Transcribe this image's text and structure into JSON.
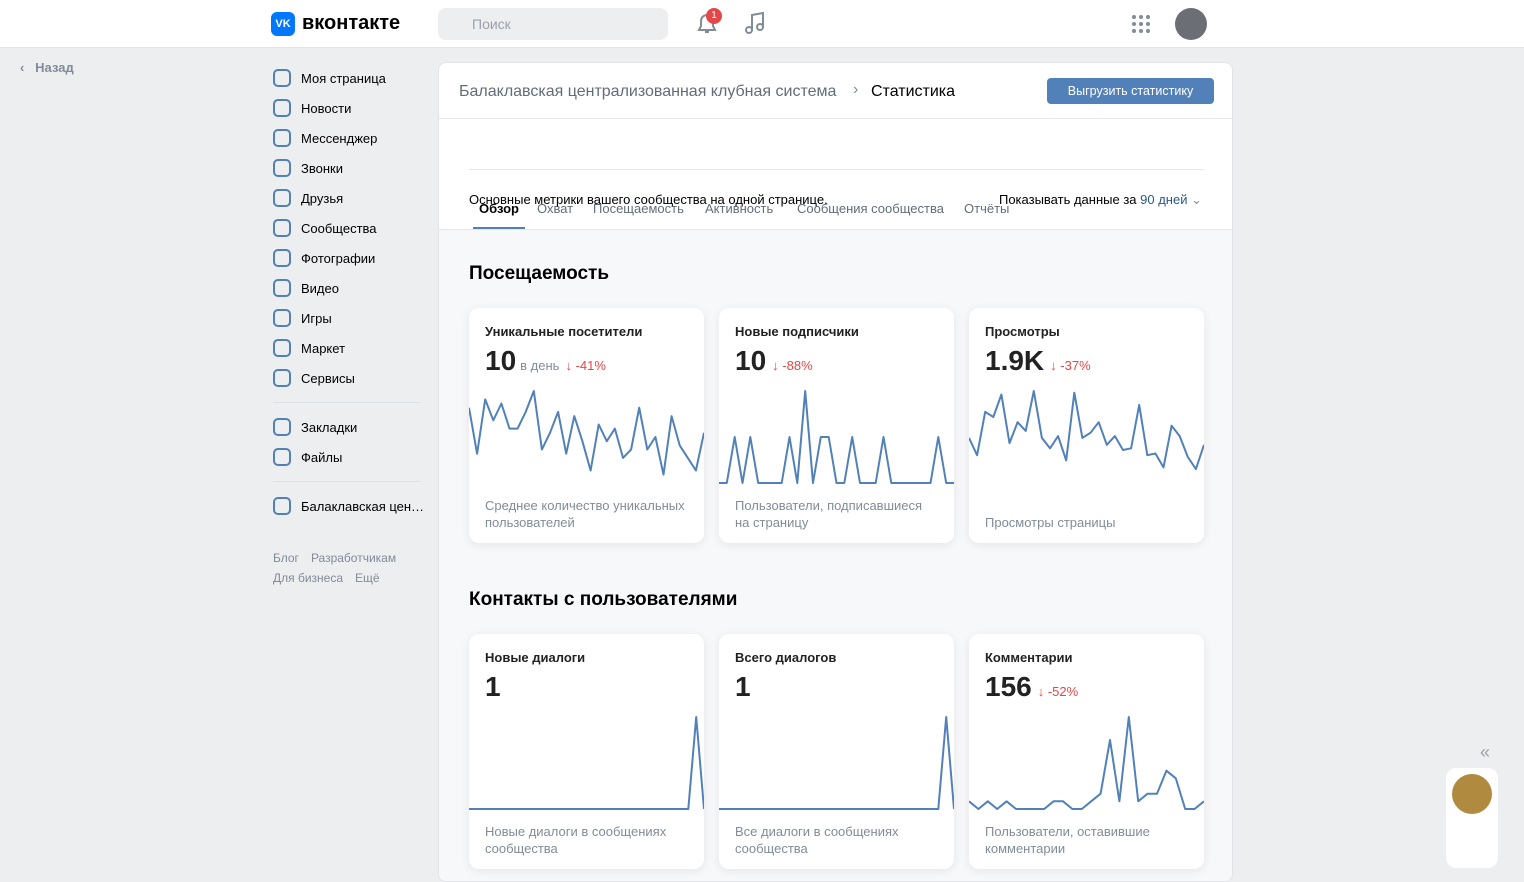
{
  "header": {
    "logo": "вконтакте",
    "search_placeholder": "Поиск",
    "notification_count": "1"
  },
  "back": "Назад",
  "nav": [
    "Моя страница",
    "Новости",
    "Мессенджер",
    "Звонки",
    "Друзья",
    "Сообщества",
    "Фотографии",
    "Видео",
    "Игры",
    "Маркет",
    "Сервисы"
  ],
  "nav_extra": [
    "Закладки",
    "Файлы"
  ],
  "community_link": "Балаклавская цен…",
  "footer_links": [
    "Блог",
    "Разработчикам",
    "Для бизнеса",
    "Ещё"
  ],
  "breadcrumb": {
    "parent": "Балаклавская централизованная клубная система",
    "current": "Статистика"
  },
  "export_button": "Выгрузить статистику",
  "tabs": [
    "Обзор",
    "Охват",
    "Посещаемость",
    "Активность",
    "Сообщения сообщества",
    "Отчёты"
  ],
  "description": "Основные метрики вашего сообщества на одной странице.",
  "period": {
    "label": "Показывать данные за",
    "value": "90 дней"
  },
  "sections": [
    {
      "title": "Посещаемость",
      "cards": [
        {
          "title": "Уникальные посетители",
          "value": "10",
          "unit": "в день",
          "change": "-41%",
          "note": "Среднее количество уникальных пользователей",
          "trend": [
            18,
            7,
            20,
            15,
            19,
            13,
            13,
            17,
            22,
            8,
            12,
            17,
            7,
            16,
            10,
            3,
            14,
            10,
            13,
            6,
            8,
            18,
            8,
            11,
            2,
            16,
            9,
            6,
            3,
            12
          ]
        },
        {
          "title": "Новые подписчики",
          "value": "10",
          "change": "-88%",
          "note": "Пользователи, подписавшиеся на страницу",
          "trend": [
            0,
            0,
            1,
            0,
            1,
            0,
            0,
            0,
            0,
            1,
            0,
            2,
            0,
            1,
            1,
            0,
            0,
            1,
            0,
            0,
            0,
            1,
            0,
            0,
            0,
            0,
            0,
            0,
            1,
            0,
            0
          ]
        },
        {
          "title": "Просмотры",
          "value": "1.9K",
          "change": "-37%",
          "note": "Просмотры страницы",
          "trend": [
            26,
            16,
            41,
            38,
            51,
            23,
            35,
            30,
            53,
            26,
            20,
            27,
            13,
            52,
            26,
            29,
            35,
            22,
            27,
            19,
            20,
            45,
            16,
            17,
            9,
            33,
            27,
            15,
            8,
            22
          ]
        }
      ]
    },
    {
      "title": "Контакты с пользователями",
      "cards": [
        {
          "title": "Новые диалоги",
          "value": "1",
          "note": "Новые диалоги в сообщениях сообщества",
          "trend": [
            0,
            0,
            0,
            0,
            0,
            0,
            0,
            0,
            0,
            0,
            0,
            0,
            0,
            0,
            0,
            0,
            0,
            0,
            0,
            0,
            0,
            0,
            0,
            0,
            0,
            0,
            0,
            0,
            0,
            1,
            0
          ]
        },
        {
          "title": "Всего диалогов",
          "value": "1",
          "note": "Все диалоги в сообщениях сообщества",
          "trend": [
            0,
            0,
            0,
            0,
            0,
            0,
            0,
            0,
            0,
            0,
            0,
            0,
            0,
            0,
            0,
            0,
            0,
            0,
            0,
            0,
            0,
            0,
            0,
            0,
            0,
            0,
            0,
            0,
            0,
            1,
            0
          ]
        },
        {
          "title": "Комментарии",
          "value": "156",
          "change": "-52%",
          "note": "Пользователи, оставившие комментарии",
          "trend": [
            1,
            0,
            1,
            0,
            1,
            0,
            0,
            0,
            0,
            1,
            1,
            0,
            0,
            1,
            2,
            9,
            1,
            12,
            1,
            2,
            2,
            5,
            4,
            0,
            0,
            1
          ]
        }
      ]
    }
  ]
}
